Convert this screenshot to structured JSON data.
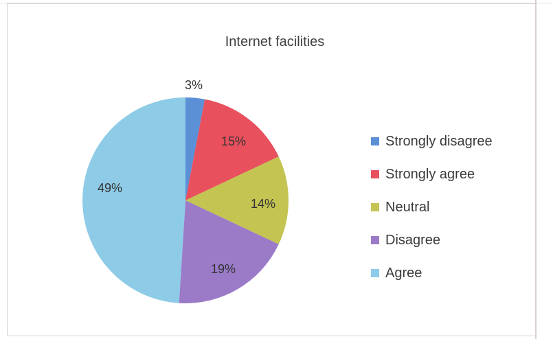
{
  "chart_data": {
    "type": "pie",
    "title": "Internet facilities",
    "slices": [
      {
        "label": "Strongly disagree",
        "value": 3,
        "display": "3%",
        "color": "#5b8fd6"
      },
      {
        "label": "Strongly agree",
        "value": 15,
        "display": "15%",
        "color": "#e8505d"
      },
      {
        "label": "Neutral",
        "value": 14,
        "display": "14%",
        "color": "#c3c451"
      },
      {
        "label": "Disagree",
        "value": 19,
        "display": "19%",
        "color": "#9b7bc8"
      },
      {
        "label": "Agree",
        "value": 49,
        "display": "49%",
        "color": "#8ecbe6"
      }
    ],
    "legend_position": "right"
  }
}
